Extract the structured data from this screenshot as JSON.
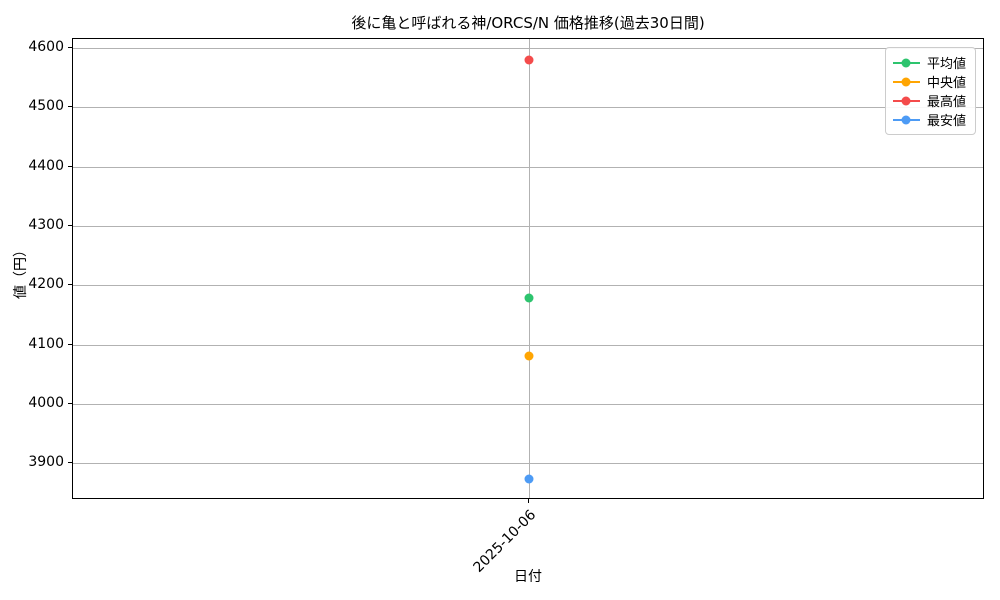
{
  "chart_data": {
    "type": "line",
    "title": "後に亀と呼ばれる神/ORCS/N 価格推移(過去30日間)",
    "xlabel": "日付",
    "ylabel": "値（円）",
    "x": [
      "2025-10-06"
    ],
    "series": [
      {
        "name": "平均値",
        "color": "#2dc46e",
        "values": [
          4178
        ]
      },
      {
        "name": "中央値",
        "color": "#ffa502",
        "values": [
          4080
        ]
      },
      {
        "name": "最高値",
        "color": "#f44b4b",
        "values": [
          4580
        ]
      },
      {
        "name": "最安値",
        "color": "#4d9bf5",
        "values": [
          3873
        ]
      }
    ],
    "yticks": [
      3900,
      4000,
      4100,
      4200,
      4300,
      4400,
      4500,
      4600
    ],
    "ylim": [
      3838,
      4615
    ],
    "grid": true,
    "legend_position": "upper right",
    "marker": "circle",
    "background_color": "#ffffff",
    "grid_color": "#b2b2b2"
  }
}
